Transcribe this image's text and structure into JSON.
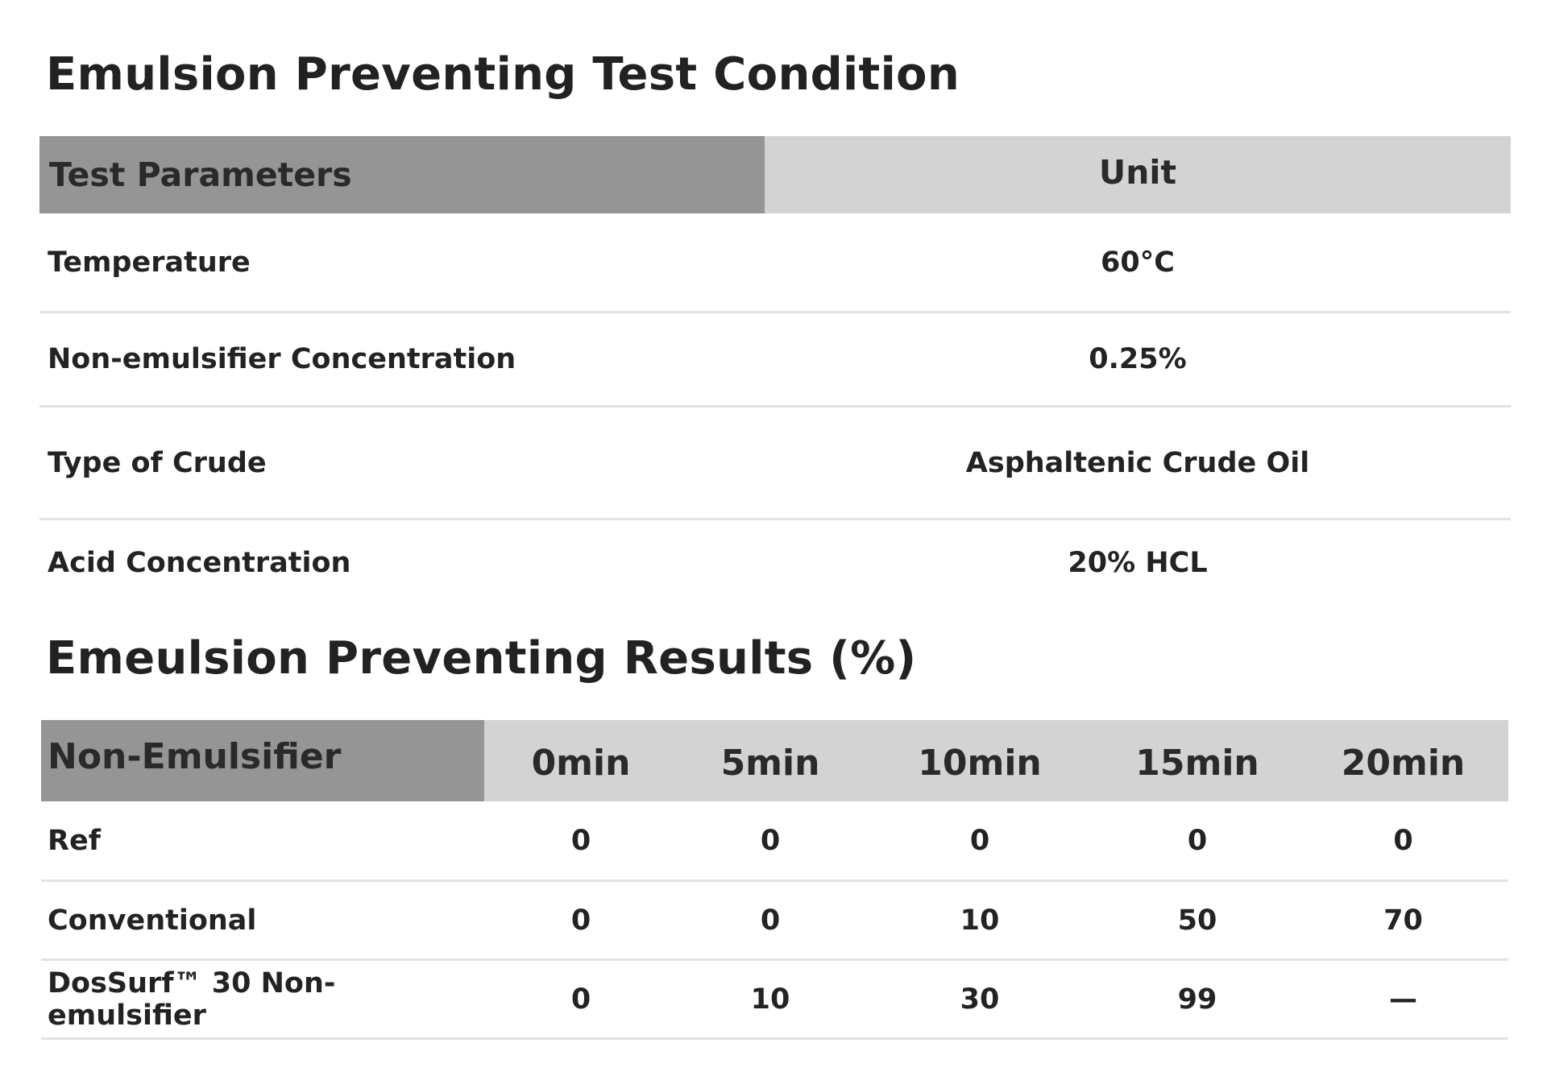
{
  "conditions": {
    "title": "Emulsion Preventing Test Condition",
    "header": {
      "param": "Test Parameters",
      "unit": "Unit"
    },
    "rows": [
      {
        "param": "Temperature",
        "value": "60°C"
      },
      {
        "param": "Non-emulsifier Concentration",
        "value": "0.25%"
      },
      {
        "param": "Type of Crude",
        "value": "Asphaltenic Crude Oil"
      },
      {
        "param": "Acid Concentration",
        "value": "20% HCL"
      }
    ]
  },
  "results": {
    "title": "Emeulsion Preventing Results (%)",
    "columns": [
      "Non-Emulsifier",
      "0min",
      "5min",
      "10min",
      "15min",
      "20min"
    ],
    "rows": [
      {
        "name": "Ref",
        "values": [
          "0",
          "0",
          "0",
          "0",
          "0"
        ]
      },
      {
        "name": "Conventional",
        "values": [
          "0",
          "0",
          "10",
          "50",
          "70"
        ]
      },
      {
        "name": "DosSurf™ 30 Non-emulsifier",
        "values": [
          "0",
          "10",
          "30",
          "99",
          "—"
        ]
      }
    ]
  },
  "colors": {
    "header_dark": "#959595",
    "header_light": "#d3d3d3",
    "divider": "#e2e2e2",
    "text": "#222222"
  }
}
